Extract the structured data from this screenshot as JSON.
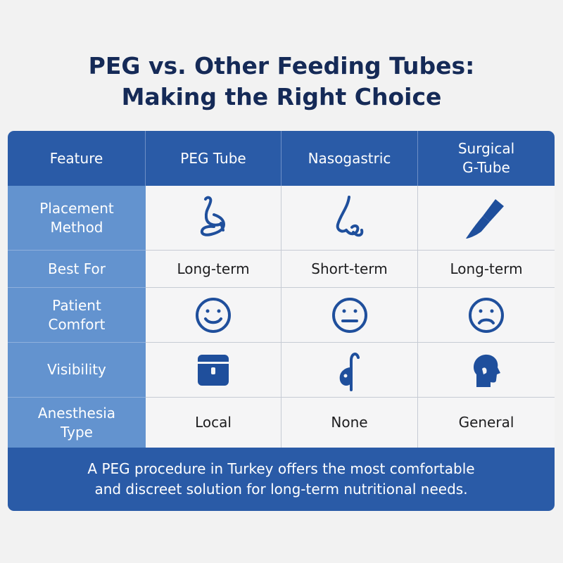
{
  "title": {
    "line1": "PEG vs. Other Feeding Tubes:",
    "line2": "Making the Right Choice"
  },
  "table": {
    "headers": [
      "Feature",
      "PEG Tube",
      "Nasogastric",
      "Surgical\nG-Tube"
    ],
    "rows": [
      {
        "feature": "Placement\nMethod",
        "cells": [
          "",
          "",
          ""
        ],
        "icons": [
          "feeding-tube-icon",
          "nose-icon",
          "scalpel-icon"
        ]
      },
      {
        "feature": "Best For",
        "cells": [
          "Long-term",
          "Short-term",
          "Long-term"
        ]
      },
      {
        "feature": "Patient\nComfort",
        "cells": [
          "",
          "",
          ""
        ],
        "icons": [
          "smiley-happy-icon",
          "smiley-neutral-icon",
          "smiley-sad-icon"
        ]
      },
      {
        "feature": "Visibility",
        "cells": [
          "",
          "",
          ""
        ],
        "icons": [
          "button-device-icon",
          "nasal-tube-icon",
          "head-profile-icon"
        ]
      },
      {
        "feature": "Anesthesia\nType",
        "cells": [
          "Local",
          "None",
          "General"
        ]
      }
    ]
  },
  "footer": {
    "line1": "A PEG procedure in Turkey offers the most comfortable",
    "line2": "and discreet solution for long-term nutritional needs."
  },
  "colors": {
    "title": "#152a57",
    "header_bg": "#2a5ba7",
    "feature_bg": "#6393cf",
    "icon": "#1f4f9c",
    "footer_bg": "#2a5ba7"
  }
}
